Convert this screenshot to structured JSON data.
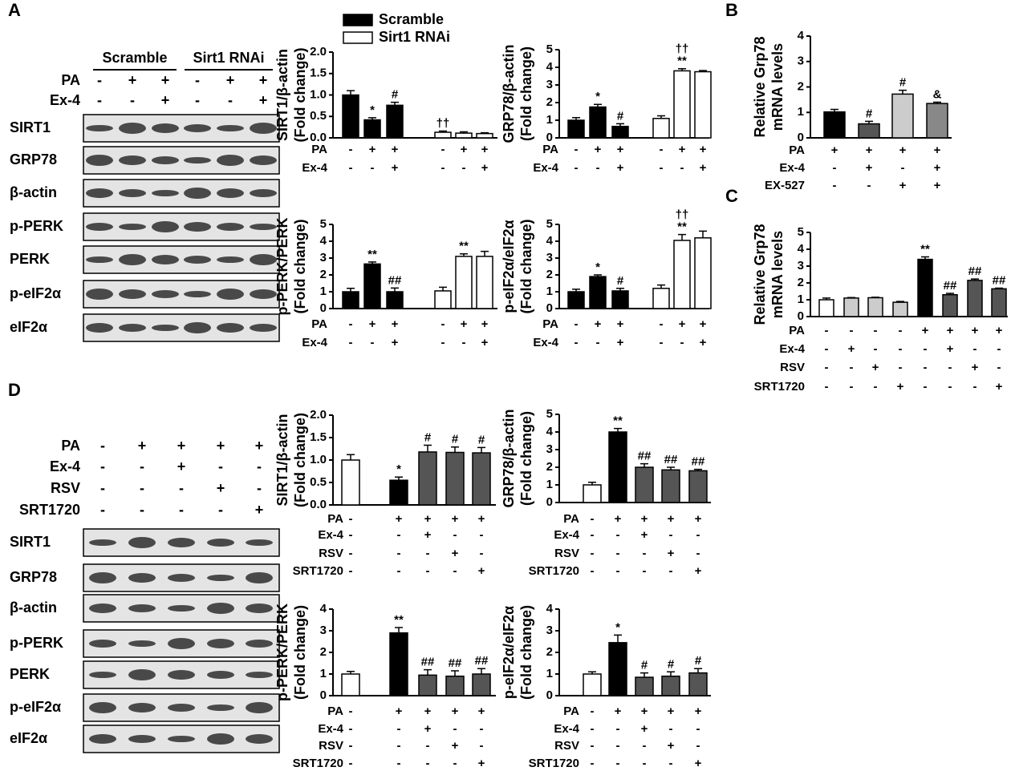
{
  "panel_labels": [
    "A",
    "B",
    "C",
    "D"
  ],
  "blots": [
    {
      "groups": [
        "Scramble",
        "Sirt1 RNAi"
      ],
      "conditions": [
        {
          "name": "PA",
          "marks": [
            "-",
            "+",
            "+",
            "-",
            "+",
            "+"
          ]
        },
        {
          "name": "Ex-4",
          "marks": [
            "-",
            "-",
            "+",
            "-",
            "-",
            "+"
          ]
        }
      ],
      "proteins": [
        "SIRT1",
        "GRP78",
        "β-actin",
        "p-PERK",
        "PERK",
        "p-eIF2α",
        "eIF2α"
      ]
    },
    {
      "conditions": [
        {
          "name": "PA",
          "marks": [
            "-",
            "+",
            "+",
            "+",
            "+"
          ]
        },
        {
          "name": "Ex-4",
          "marks": [
            "-",
            "-",
            "+",
            "-",
            "-"
          ]
        },
        {
          "name": "RSV",
          "marks": [
            "-",
            "-",
            "-",
            "+",
            "-"
          ]
        },
        {
          "name": "SRT1720",
          "marks": [
            "-",
            "-",
            "-",
            "-",
            "+"
          ]
        }
      ],
      "proteins": [
        "SIRT1",
        "GRP78",
        "β-actin",
        "p-PERK",
        "PERK",
        "p-eIF2α",
        "eIF2α"
      ]
    }
  ],
  "chart_data": [
    {
      "type": "bar",
      "ylabel": [
        "SIRT1/β-actin",
        "(Fold change)"
      ],
      "ylim": [
        0,
        2
      ],
      "yticks": [
        {
          "value": 0,
          "label": "0.0"
        },
        0.5,
        {
          "value": 1,
          "label": "1.0"
        },
        1.5,
        {
          "value": 2,
          "label": "2.0"
        }
      ],
      "series": [
        {
          "name": "Scramble",
          "color": "#000000",
          "values": [
            1.0,
            0.42,
            0.76
          ],
          "errors": [
            0.1,
            0.05,
            0.07
          ],
          "signs": [
            null,
            "*",
            "#"
          ]
        },
        {
          "name": "Sirt1 RNAi",
          "color": "#ffffff",
          "values": [
            0.13,
            0.11,
            0.1
          ],
          "errors": [
            0.03,
            0.03,
            0.02
          ],
          "signs": [
            "††",
            null,
            null
          ]
        }
      ],
      "conditions": [
        {
          "name": "PA",
          "marks": [
            "-",
            "+",
            "+",
            "-",
            "+",
            "+"
          ]
        },
        {
          "name": "Ex-4",
          "marks": [
            "-",
            "-",
            "+",
            "-",
            "-",
            "+"
          ]
        }
      ]
    },
    {
      "type": "bar",
      "ylabel": [
        "GRP78/β-actin",
        "(Fold change)"
      ],
      "ylim": [
        0,
        5
      ],
      "yticks": [
        0,
        1,
        2,
        3,
        4,
        5
      ],
      "series": [
        {
          "color": "#000000",
          "values": [
            1.0,
            1.75,
            0.65
          ],
          "errors": [
            0.15,
            0.15,
            0.15
          ],
          "signs": [
            null,
            "*",
            "#"
          ]
        },
        {
          "color": "#ffffff",
          "values": [
            1.1,
            3.8,
            3.75
          ],
          "errors": [
            0.15,
            0.12,
            0.07
          ],
          "signs": [
            null,
            [
              "**",
              "††"
            ],
            null
          ]
        }
      ],
      "conditions": [
        {
          "name": "PA",
          "marks": [
            "-",
            "+",
            "+",
            "-",
            "+",
            "+"
          ]
        },
        {
          "name": "Ex-4",
          "marks": [
            "-",
            "-",
            "+",
            "-",
            "-",
            "+"
          ]
        }
      ]
    },
    {
      "type": "bar",
      "ylabel": [
        "p-PERK/PERK",
        "(Fold change)"
      ],
      "ylim": [
        0,
        5
      ],
      "yticks": [
        0,
        1,
        2,
        3,
        4,
        5
      ],
      "series": [
        {
          "color": "#000000",
          "values": [
            1.0,
            2.65,
            1.0
          ],
          "errors": [
            0.2,
            0.12,
            0.22
          ],
          "signs": [
            null,
            "**",
            "##"
          ]
        },
        {
          "color": "#ffffff",
          "values": [
            1.05,
            3.1,
            3.1
          ],
          "errors": [
            0.22,
            0.15,
            0.3
          ],
          "signs": [
            null,
            "**",
            null
          ]
        }
      ],
      "conditions": [
        {
          "name": "PA",
          "marks": [
            "-",
            "+",
            "+",
            "-",
            "+",
            "+"
          ]
        },
        {
          "name": "Ex-4",
          "marks": [
            "-",
            "-",
            "+",
            "-",
            "-",
            "+"
          ]
        }
      ]
    },
    {
      "type": "bar",
      "ylabel": [
        "p-eIF2α/eIF2α",
        "(Fold change)"
      ],
      "ylim": [
        0,
        5
      ],
      "yticks": [
        0,
        1,
        2,
        3,
        4,
        5
      ],
      "series": [
        {
          "color": "#000000",
          "values": [
            1.0,
            1.9,
            1.05
          ],
          "errors": [
            0.15,
            0.1,
            0.15
          ],
          "signs": [
            null,
            "*",
            "#"
          ]
        },
        {
          "color": "#ffffff",
          "values": [
            1.2,
            4.05,
            4.2
          ],
          "errors": [
            0.2,
            0.35,
            0.4
          ],
          "signs": [
            null,
            [
              "**",
              "††"
            ],
            null
          ]
        }
      ],
      "conditions": [
        {
          "name": "PA",
          "marks": [
            "-",
            "+",
            "+",
            "-",
            "+",
            "+"
          ]
        },
        {
          "name": "Ex-4",
          "marks": [
            "-",
            "-",
            "+",
            "-",
            "-",
            "+"
          ]
        }
      ]
    },
    {
      "type": "bar",
      "ylabel": [
        "Relative Grp78",
        "mRNA levels"
      ],
      "ylim": [
        0,
        4
      ],
      "yticks": [
        0,
        1,
        2,
        3,
        4
      ],
      "series": [
        {
          "colors": [
            "#000000",
            "#555555",
            "#cccccc",
            "#888888"
          ],
          "values": [
            1.02,
            0.55,
            1.72,
            1.35
          ],
          "errors": [
            0.1,
            0.1,
            0.15,
            0.05
          ],
          "signs": [
            null,
            "#",
            "#",
            "&"
          ]
        }
      ],
      "conditions": [
        {
          "name": "PA",
          "marks": [
            "+",
            "+",
            "+",
            "+"
          ]
        },
        {
          "name": "Ex-4",
          "marks": [
            "-",
            "+",
            "-",
            "+"
          ]
        },
        {
          "name": "EX-527",
          "marks": [
            "-",
            "-",
            "+",
            "+"
          ]
        }
      ]
    },
    {
      "type": "bar",
      "ylabel": [
        "Relative Grp78",
        "mRNA levels"
      ],
      "ylim": [
        0,
        5
      ],
      "yticks": [
        0,
        1,
        2,
        3,
        4,
        5
      ],
      "series": [
        {
          "colors": [
            "#ffffff",
            "#cccccc",
            "#cccccc",
            "#cccccc",
            "#000000",
            "#555555",
            "#555555",
            "#555555"
          ],
          "values": [
            1.0,
            1.1,
            1.12,
            0.85,
            3.4,
            1.3,
            2.15,
            1.65
          ],
          "errors": [
            0.1,
            0.03,
            0.03,
            0.05,
            0.15,
            0.08,
            0.08,
            0.04
          ],
          "signs": [
            null,
            null,
            null,
            null,
            "**",
            "##",
            "##",
            "##"
          ]
        }
      ],
      "conditions": [
        {
          "name": "PA",
          "marks": [
            "-",
            "-",
            "-",
            "-",
            "+",
            "+",
            "+",
            "+"
          ]
        },
        {
          "name": "Ex-4",
          "marks": [
            "-",
            "+",
            "-",
            "-",
            "-",
            "+",
            "-",
            "-"
          ]
        },
        {
          "name": "RSV",
          "marks": [
            "-",
            "-",
            "+",
            "-",
            "-",
            "-",
            "+",
            "-"
          ]
        },
        {
          "name": "SRT1720",
          "marks": [
            "-",
            "-",
            "-",
            "+",
            "-",
            "-",
            "-",
            "+"
          ]
        }
      ]
    },
    {
      "type": "bar",
      "ylabel": [
        "SIRT1/β-actin",
        "(Fold change)"
      ],
      "ylim": [
        0,
        2
      ],
      "yticks": [
        {
          "value": 0,
          "label": "0.0"
        },
        0.5,
        {
          "value": 1,
          "label": "1.0"
        },
        1.5,
        {
          "value": 2,
          "label": "2.0"
        }
      ],
      "series": [
        {
          "colors": [
            "#ffffff",
            "#000000",
            "#555555",
            "#555555",
            "#555555"
          ],
          "values": [
            1.0,
            0.55,
            1.18,
            1.17,
            1.16
          ],
          "errors": [
            0.12,
            0.07,
            0.15,
            0.12,
            0.12
          ],
          "signs": [
            null,
            "*",
            "#",
            "#",
            "#"
          ]
        }
      ],
      "conditions": [
        {
          "name": "PA",
          "marks": [
            "-",
            "+",
            "+",
            "+",
            "+"
          ]
        },
        {
          "name": "Ex-4",
          "marks": [
            "-",
            "-",
            "+",
            "-",
            "-"
          ]
        },
        {
          "name": "RSV",
          "marks": [
            "-",
            "-",
            "-",
            "+",
            "-"
          ]
        },
        {
          "name": "SRT1720",
          "marks": [
            "-",
            "-",
            "-",
            "-",
            "+"
          ]
        }
      ]
    },
    {
      "type": "bar",
      "ylabel": [
        "GRP78/β-actin",
        "(Fold change)"
      ],
      "ylim": [
        0,
        5
      ],
      "yticks": [
        0,
        1,
        2,
        3,
        4,
        5
      ],
      "series": [
        {
          "colors": [
            "#ffffff",
            "#000000",
            "#555555",
            "#555555",
            "#555555"
          ],
          "values": [
            1.0,
            4.0,
            2.0,
            1.85,
            1.8
          ],
          "errors": [
            0.15,
            0.2,
            0.2,
            0.15,
            0.08
          ],
          "signs": [
            null,
            "**",
            "##",
            "##",
            "##"
          ]
        }
      ],
      "conditions": [
        {
          "name": "PA",
          "marks": [
            "-",
            "+",
            "+",
            "+",
            "+"
          ]
        },
        {
          "name": "Ex-4",
          "marks": [
            "-",
            "-",
            "+",
            "-",
            "-"
          ]
        },
        {
          "name": "RSV",
          "marks": [
            "-",
            "-",
            "-",
            "+",
            "-"
          ]
        },
        {
          "name": "SRT1720",
          "marks": [
            "-",
            "-",
            "-",
            "-",
            "+"
          ]
        }
      ]
    },
    {
      "type": "bar",
      "ylabel": [
        "p-PERK/PERK",
        "(Fold change)"
      ],
      "ylim": [
        0,
        4
      ],
      "yticks": [
        0,
        1,
        2,
        3,
        4
      ],
      "series": [
        {
          "colors": [
            "#ffffff",
            "#000000",
            "#555555",
            "#555555",
            "#555555"
          ],
          "values": [
            1.0,
            2.9,
            0.95,
            0.9,
            1.0
          ],
          "errors": [
            0.12,
            0.25,
            0.25,
            0.25,
            0.25
          ],
          "signs": [
            null,
            "**",
            "##",
            "##",
            "##"
          ]
        }
      ],
      "conditions": [
        {
          "name": "PA",
          "marks": [
            "-",
            "+",
            "+",
            "+",
            "+"
          ]
        },
        {
          "name": "Ex-4",
          "marks": [
            "-",
            "-",
            "+",
            "-",
            "-"
          ]
        },
        {
          "name": "RSV",
          "marks": [
            "-",
            "-",
            "-",
            "+",
            "-"
          ]
        },
        {
          "name": "SRT1720",
          "marks": [
            "-",
            "-",
            "-",
            "-",
            "+"
          ]
        }
      ]
    },
    {
      "type": "bar",
      "ylabel": [
        "p-eIF2α/eIF2α",
        "(Fold change)"
      ],
      "ylim": [
        0,
        4
      ],
      "yticks": [
        0,
        1,
        2,
        3,
        4
      ],
      "series": [
        {
          "colors": [
            "#ffffff",
            "#000000",
            "#555555",
            "#555555",
            "#555555"
          ],
          "values": [
            1.0,
            2.45,
            0.85,
            0.9,
            1.05
          ],
          "errors": [
            0.1,
            0.35,
            0.2,
            0.2,
            0.2
          ],
          "signs": [
            null,
            "*",
            "#",
            "#",
            "#"
          ]
        }
      ],
      "conditions": [
        {
          "name": "PA",
          "marks": [
            "-",
            "+",
            "+",
            "+",
            "+"
          ]
        },
        {
          "name": "Ex-4",
          "marks": [
            "-",
            "-",
            "+",
            "-",
            "-"
          ]
        },
        {
          "name": "RSV",
          "marks": [
            "-",
            "-",
            "-",
            "+",
            "-"
          ]
        },
        {
          "name": "SRT1720",
          "marks": [
            "-",
            "-",
            "-",
            "-",
            "+"
          ]
        }
      ]
    }
  ]
}
